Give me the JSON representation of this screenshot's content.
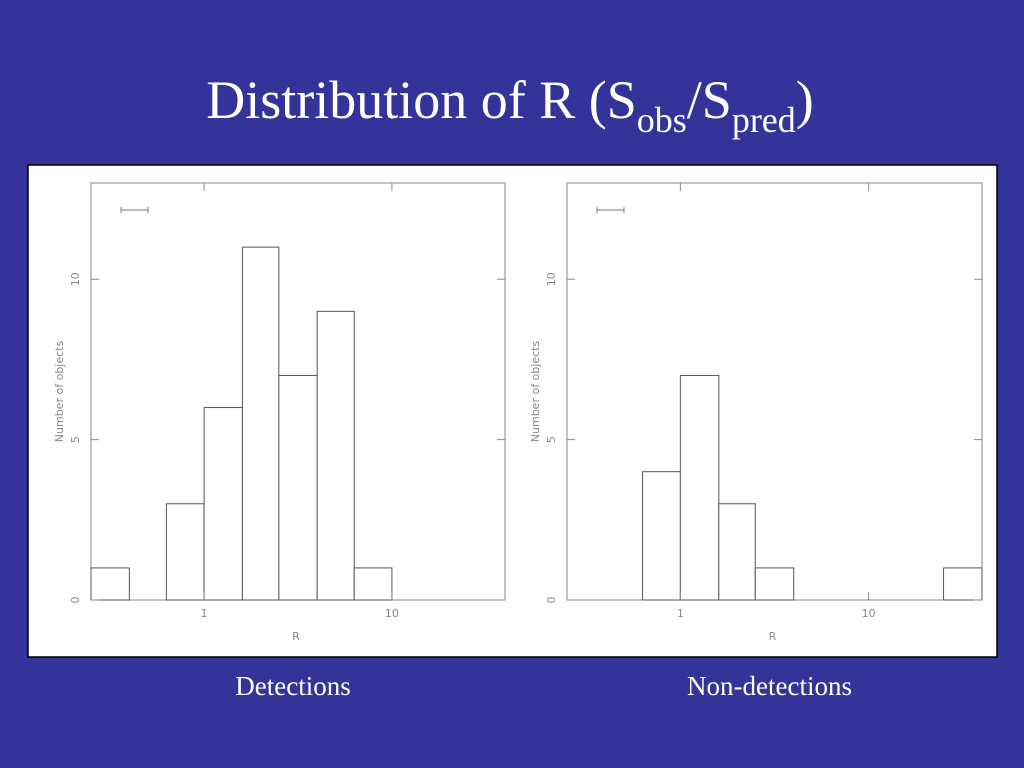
{
  "title": {
    "main": "Distribution of R (S",
    "sub_obs": "obs",
    "mid": "/S",
    "sub_pred": "pred",
    "end": ")"
  },
  "chart_data": [
    {
      "type": "histogram",
      "caption": "Detections",
      "xlabel": "R",
      "ylabel": "Number of objects",
      "log_x": true,
      "color": "#ffffff",
      "edge_color": "#555555",
      "bins": [
        0.25,
        0.4,
        0.63,
        1,
        1.6,
        2.5,
        4,
        6.3,
        10,
        16,
        25,
        40
      ],
      "values": [
        1,
        0,
        3,
        6,
        11,
        7,
        9,
        1,
        0,
        0,
        0
      ],
      "xlim": [
        0.25,
        40
      ],
      "xticks": [
        1,
        10
      ],
      "ylim": [
        0,
        13
      ],
      "yticks": [
        0,
        5,
        10
      ]
    },
    {
      "type": "histogram",
      "caption": "Non-detections",
      "xlabel": "R",
      "ylabel": "Number of objects",
      "log_x": true,
      "color": "#ffffff",
      "edge_color": "#555555",
      "bins": [
        0.25,
        0.4,
        0.63,
        1,
        1.6,
        2.5,
        4,
        6.3,
        10,
        16,
        25,
        40
      ],
      "values": [
        0,
        0,
        4,
        7,
        3,
        1,
        0,
        0,
        0,
        0,
        1
      ],
      "xlim": [
        0.25,
        40
      ],
      "xticks": [
        1,
        10
      ],
      "ylim": [
        0,
        13
      ],
      "yticks": [
        0,
        5,
        10
      ]
    }
  ]
}
